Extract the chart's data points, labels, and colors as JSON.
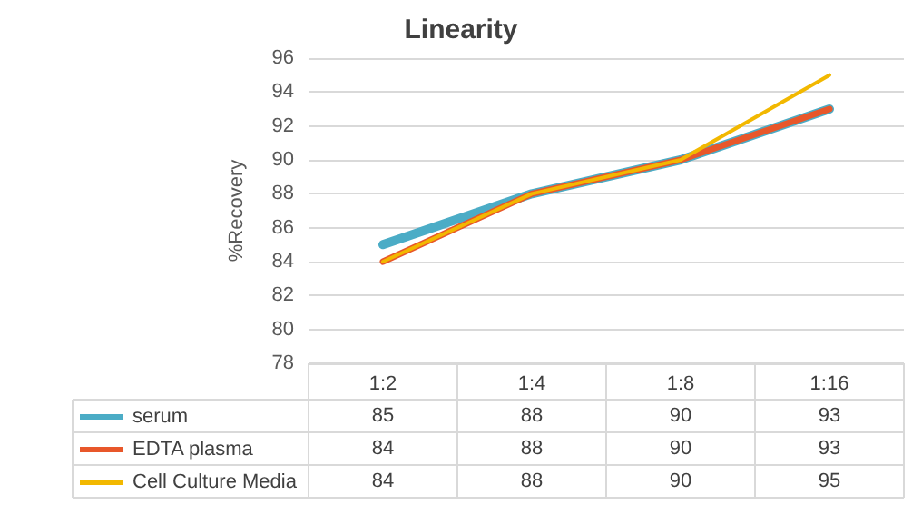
{
  "chart_data": {
    "type": "line",
    "title": "Linearity",
    "ylabel": "%Recovery",
    "categories": [
      "1:2",
      "1:4",
      "1:8",
      "1:16"
    ],
    "series": [
      {
        "name": "serum",
        "color": "#4bacc6",
        "values": [
          85,
          88,
          90,
          93
        ]
      },
      {
        "name": "EDTA plasma",
        "color": "#e8572a",
        "values": [
          84,
          88,
          90,
          93
        ]
      },
      {
        "name": "Cell Culture Media",
        "color": "#f2b800",
        "values": [
          84,
          88,
          90,
          95
        ]
      }
    ],
    "ylim": [
      78,
      96
    ],
    "yticks": [
      78,
      80,
      82,
      84,
      86,
      88,
      90,
      92,
      94,
      96
    ],
    "grid": "y",
    "legend": "bottom",
    "data_labels": true,
    "marker": "none",
    "line_style": "solid"
  }
}
